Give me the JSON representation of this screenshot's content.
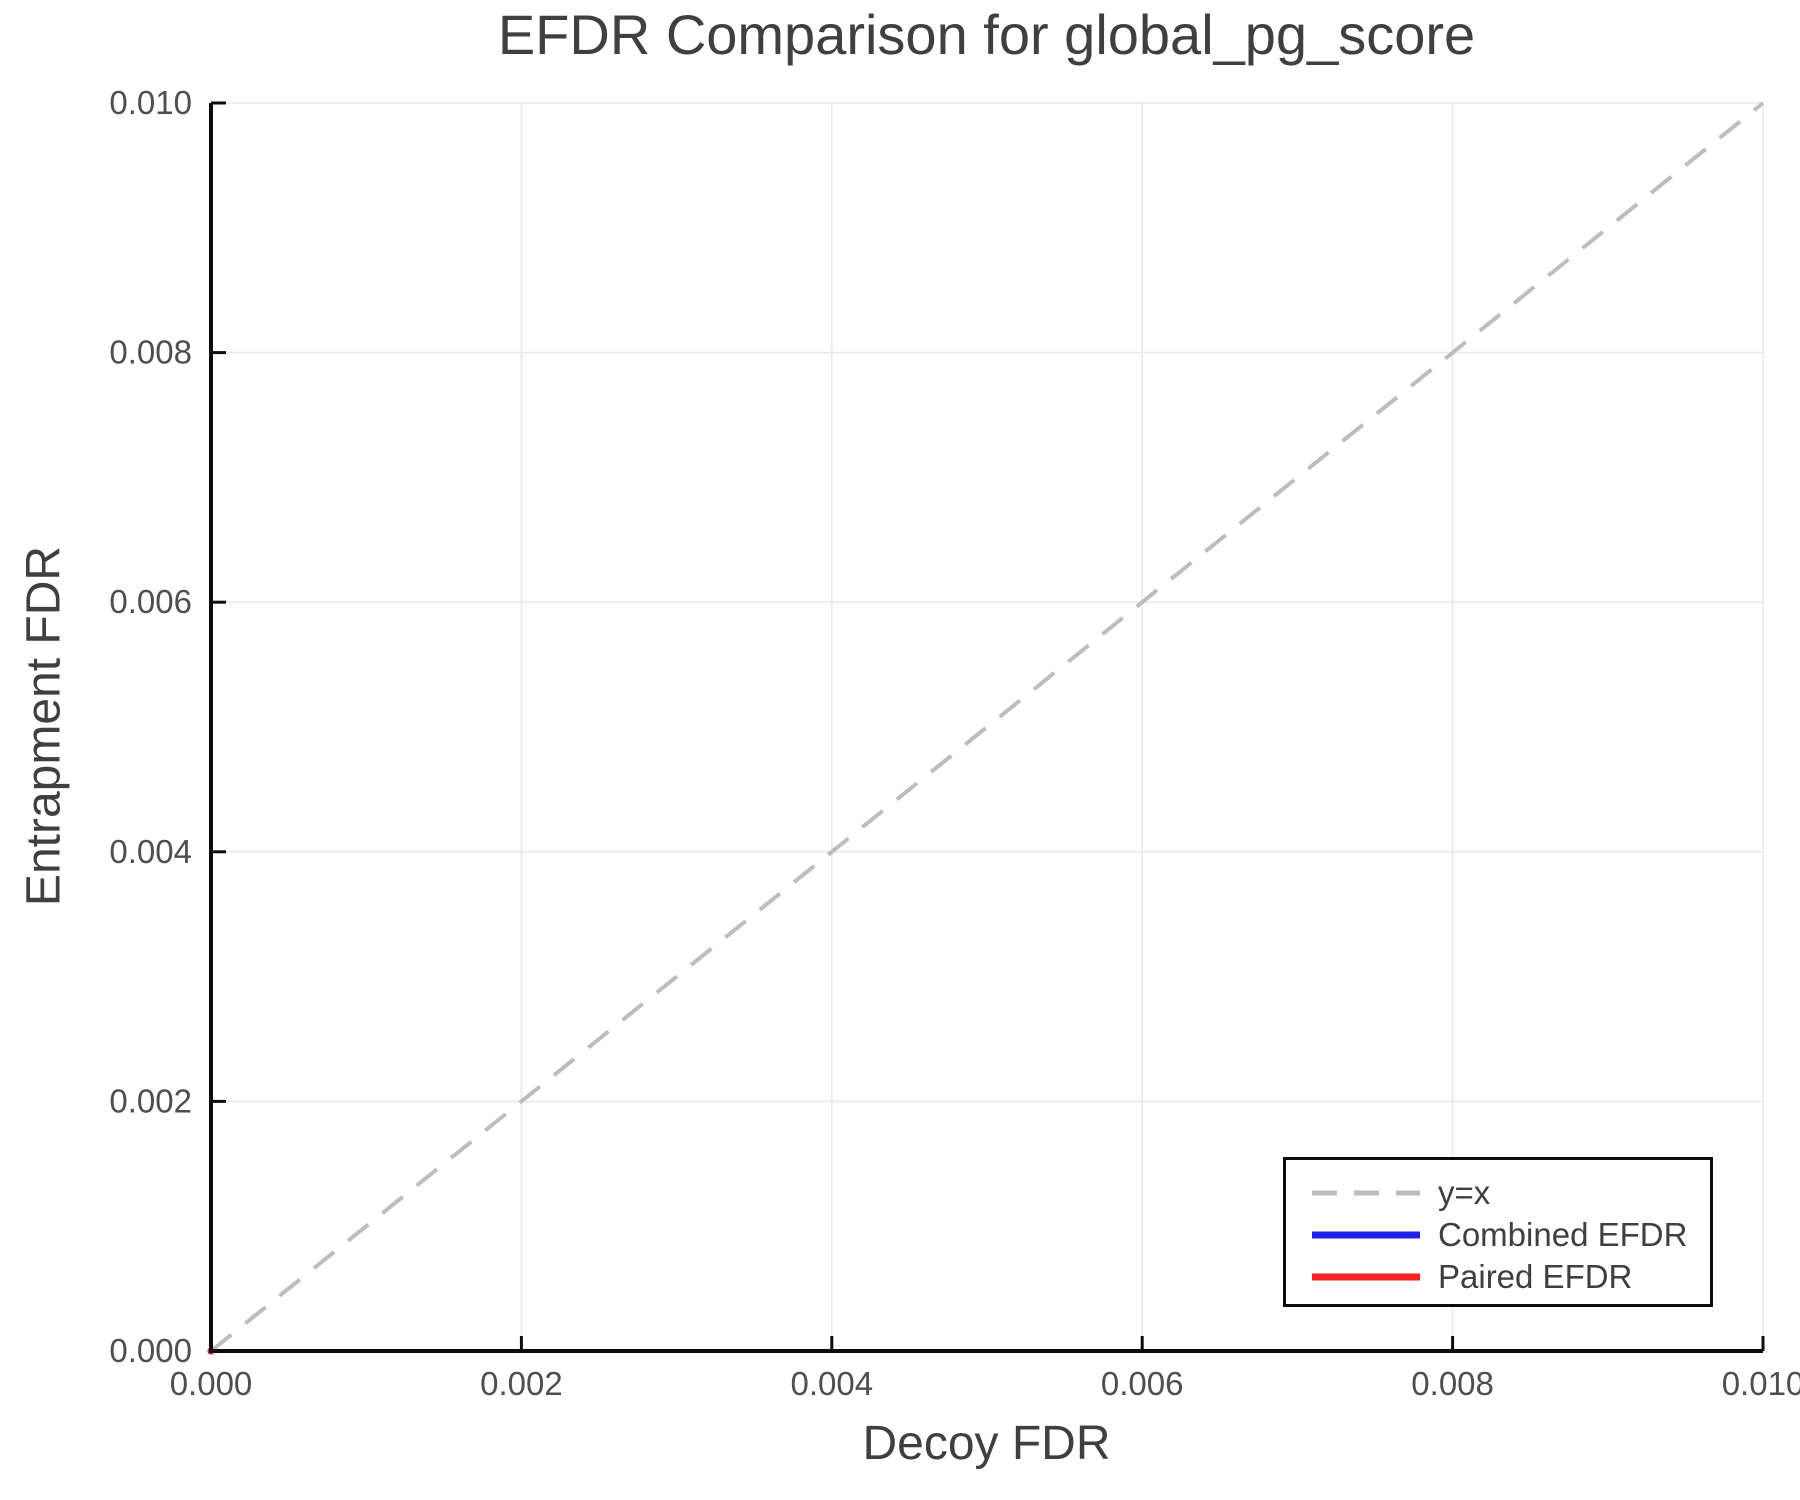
{
  "chart_data": {
    "type": "line",
    "title": "EFDR Comparison for global_pg_score",
    "xlabel": "Decoy FDR",
    "ylabel": "Entrapment FDR",
    "xlim": [
      0,
      0.01
    ],
    "ylim": [
      0,
      0.01
    ],
    "grid": true,
    "legend_position": "bottom-right",
    "xticks": {
      "values": [
        0,
        0.002,
        0.004,
        0.006,
        0.008,
        0.01
      ],
      "labels": [
        "0.000",
        "0.002",
        "0.004",
        "0.006",
        "0.008",
        "0.010"
      ]
    },
    "yticks": {
      "values": [
        0,
        0.002,
        0.004,
        0.006,
        0.008,
        0.01
      ],
      "labels": [
        "0.000",
        "0.002",
        "0.004",
        "0.006",
        "0.008",
        "0.010"
      ]
    },
    "series": [
      {
        "name": "y=x",
        "style": "dashed",
        "color": "#bdbdbd",
        "points": [
          [
            0,
            0
          ],
          [
            0.01,
            0.01
          ]
        ]
      },
      {
        "name": "Combined EFDR",
        "style": "solid",
        "color": "#2020e6",
        "points": [
          [
            0,
            0
          ]
        ]
      },
      {
        "name": "Paired EFDR",
        "style": "solid",
        "color": "#f32222",
        "points": [
          [
            0,
            0
          ]
        ]
      }
    ]
  },
  "colors": {
    "background": "#ffffff",
    "grid": "#e9e9e9",
    "axis": "#0d0d0d",
    "title_text": "#3f3f3f",
    "tick_text": "#4e4e4e",
    "legend_border": "#0d0d0d"
  }
}
